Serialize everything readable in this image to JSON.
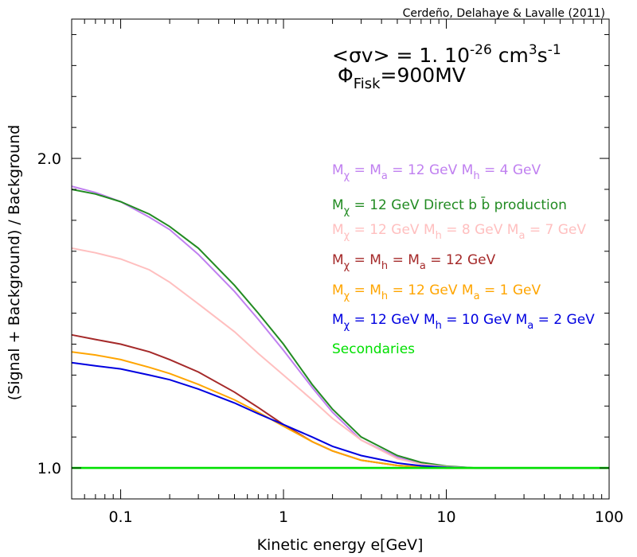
{
  "chart_data": {
    "type": "line",
    "credit": "Cerdeño, Delahaye & Lavalle (2011)",
    "xlabel": "Kinetic energy e[GeV]",
    "ylabel": "(Signal + Background) / Background",
    "x_scale": "log",
    "xlim": [
      0.05,
      100
    ],
    "ylim": [
      0.9,
      2.45
    ],
    "x_ticks": [
      {
        "value": 0.1,
        "label": "0.1"
      },
      {
        "value": 1,
        "label": "1"
      },
      {
        "value": 10,
        "label": "10"
      },
      {
        "value": 100,
        "label": "100"
      }
    ],
    "y_ticks": [
      {
        "value": 1.0,
        "label": "1.0"
      },
      {
        "value": 2.0,
        "label": "2.0"
      }
    ],
    "y_minor_step": 0.1,
    "grid": false,
    "annotation": {
      "line1": {
        "pre": "<σv> = 1. 10",
        "sup1": "-26",
        "mid": " cm",
        "sup2": "3",
        "mid2": "s",
        "sup3": "-1"
      },
      "line2": {
        "pre": "Φ",
        "sub": "Fisk",
        "post": "=900MV"
      }
    },
    "series": [
      {
        "label_parts": [
          {
            "t": "M"
          },
          {
            "t": "χ",
            "sub": true
          },
          {
            "t": " = M"
          },
          {
            "t": "a",
            "sub": true
          },
          {
            "t": " = 12 GeV  M"
          },
          {
            "t": "h",
            "sub": true
          },
          {
            "t": " = 4 GeV"
          }
        ],
        "color": "#c080f0",
        "x": [
          0.05,
          0.07,
          0.1,
          0.15,
          0.2,
          0.3,
          0.5,
          0.7,
          1,
          1.5,
          2,
          3,
          5,
          7,
          10,
          15,
          20,
          50,
          100
        ],
        "y": [
          1.91,
          1.89,
          1.86,
          1.81,
          1.77,
          1.69,
          1.57,
          1.48,
          1.38,
          1.26,
          1.18,
          1.09,
          1.035,
          1.015,
          1.005,
          1.0,
          1.0,
          1.0,
          1.0
        ]
      },
      {
        "label_parts": [
          {
            "t": "M"
          },
          {
            "t": "χ",
            "sub": true
          },
          {
            "t": " = 12 GeV Direct b b̄ production"
          }
        ],
        "color": "#228b22",
        "x": [
          0.05,
          0.07,
          0.1,
          0.15,
          0.2,
          0.3,
          0.5,
          0.7,
          1,
          1.5,
          2,
          3,
          5,
          7,
          10,
          15,
          20,
          50,
          100
        ],
        "y": [
          1.9,
          1.885,
          1.86,
          1.82,
          1.78,
          1.71,
          1.59,
          1.5,
          1.4,
          1.27,
          1.19,
          1.1,
          1.04,
          1.018,
          1.006,
          1.0,
          1.0,
          1.0,
          1.0
        ]
      },
      {
        "label_parts": [
          {
            "t": "M"
          },
          {
            "t": "χ",
            "sub": true
          },
          {
            "t": " = 12 GeV M"
          },
          {
            "t": "h",
            "sub": true
          },
          {
            "t": " = 8 GeV  M"
          },
          {
            "t": "a",
            "sub": true
          },
          {
            "t": " = 7 GeV"
          }
        ],
        "color": "#ffbfbf",
        "x": [
          0.05,
          0.07,
          0.1,
          0.15,
          0.2,
          0.3,
          0.5,
          0.7,
          1,
          1.5,
          2,
          3,
          5,
          7,
          10,
          15,
          20,
          50,
          100
        ],
        "y": [
          1.71,
          1.695,
          1.675,
          1.64,
          1.6,
          1.53,
          1.44,
          1.37,
          1.3,
          1.22,
          1.16,
          1.09,
          1.03,
          1.012,
          1.004,
          1.0,
          1.0,
          1.0,
          1.0
        ]
      },
      {
        "label_parts": [
          {
            "t": "M"
          },
          {
            "t": "χ",
            "sub": true
          },
          {
            "t": " = M"
          },
          {
            "t": "h",
            "sub": true
          },
          {
            "t": " = M"
          },
          {
            "t": "a",
            "sub": true
          },
          {
            "t": " = 12 GeV"
          }
        ],
        "color": "#a52a2a",
        "x": [
          0.05,
          0.07,
          0.1,
          0.15,
          0.2,
          0.3,
          0.5,
          0.7,
          1,
          1.5,
          2,
          3,
          5,
          7,
          10,
          15,
          20,
          50,
          100
        ],
        "y": [
          1.43,
          1.415,
          1.4,
          1.375,
          1.35,
          1.31,
          1.245,
          1.195,
          1.14,
          1.085,
          1.055,
          1.025,
          1.008,
          1.003,
          1.0,
          1.0,
          1.0,
          1.0,
          1.0
        ]
      },
      {
        "label_parts": [
          {
            "t": "M"
          },
          {
            "t": "χ",
            "sub": true
          },
          {
            "t": " = M"
          },
          {
            "t": "h",
            "sub": true
          },
          {
            "t": " = 12 GeV  M"
          },
          {
            "t": "a",
            "sub": true
          },
          {
            "t": " = 1 GeV"
          }
        ],
        "color": "#ffa500",
        "x": [
          0.05,
          0.07,
          0.1,
          0.15,
          0.2,
          0.3,
          0.5,
          0.7,
          1,
          1.5,
          2,
          3,
          5,
          7,
          10,
          15,
          20,
          50,
          100
        ],
        "y": [
          1.375,
          1.365,
          1.35,
          1.325,
          1.305,
          1.27,
          1.22,
          1.18,
          1.135,
          1.085,
          1.055,
          1.025,
          1.008,
          1.003,
          1.0,
          1.0,
          1.0,
          1.0,
          1.0
        ]
      },
      {
        "label_parts": [
          {
            "t": "M"
          },
          {
            "t": "χ",
            "sub": true
          },
          {
            "t": " = 12 GeV M"
          },
          {
            "t": "h",
            "sub": true
          },
          {
            "t": " = 10 GeV  M"
          },
          {
            "t": "a",
            "sub": true
          },
          {
            "t": " = 2 GeV"
          }
        ],
        "color": "#0000e0",
        "x": [
          0.05,
          0.07,
          0.1,
          0.15,
          0.2,
          0.3,
          0.5,
          0.7,
          1,
          1.5,
          2,
          3,
          5,
          7,
          10,
          15,
          20,
          50,
          100
        ],
        "y": [
          1.34,
          1.33,
          1.32,
          1.3,
          1.285,
          1.255,
          1.21,
          1.175,
          1.14,
          1.1,
          1.07,
          1.04,
          1.016,
          1.007,
          1.002,
          1.0,
          1.0,
          1.0,
          1.0
        ]
      },
      {
        "label_parts": [
          {
            "t": "Secondaries"
          }
        ],
        "color": "#00e000",
        "x": [
          0.05,
          100
        ],
        "y": [
          1.0,
          1.0
        ]
      }
    ]
  }
}
